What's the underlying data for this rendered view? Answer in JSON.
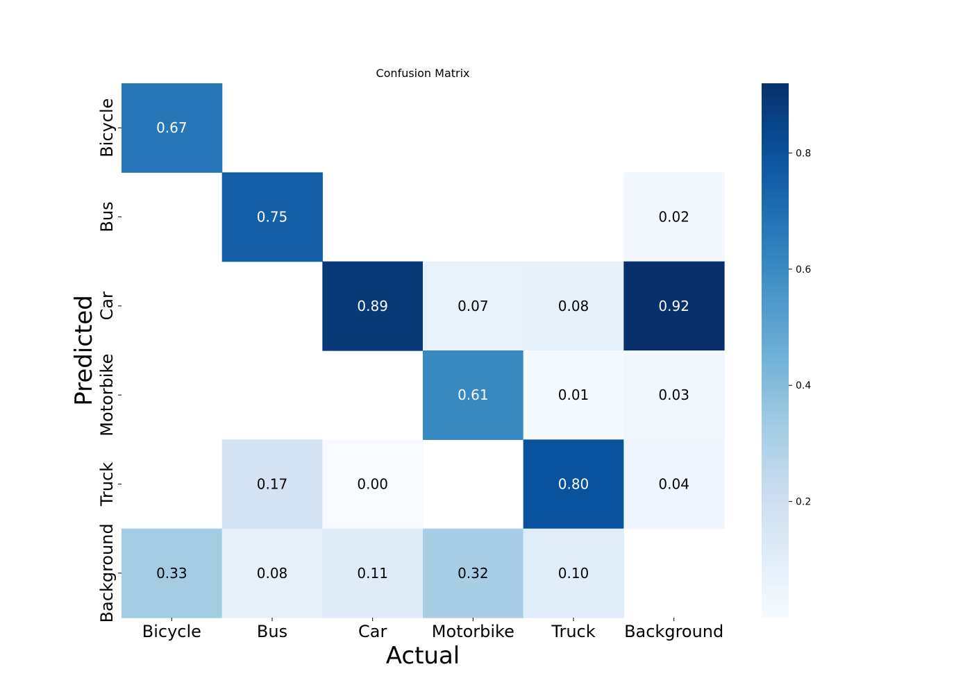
{
  "chart_data": {
    "type": "heatmap",
    "title": "Confusion Matrix",
    "xlabel": "Actual",
    "ylabel": "Predicted",
    "x_categories": [
      "Bicycle",
      "Bus",
      "Car",
      "Motorbike",
      "Truck",
      "Background"
    ],
    "y_categories": [
      "Bicycle",
      "Bus",
      "Car",
      "Motorbike",
      "Truck",
      "Background"
    ],
    "values": [
      [
        0.67,
        null,
        null,
        null,
        null,
        null
      ],
      [
        null,
        0.75,
        null,
        null,
        null,
        0.02
      ],
      [
        null,
        null,
        0.89,
        0.07,
        0.08,
        0.92
      ],
      [
        null,
        null,
        null,
        0.61,
        0.01,
        0.03
      ],
      [
        null,
        0.17,
        0.0,
        null,
        0.8,
        0.04
      ],
      [
        0.33,
        0.08,
        0.11,
        0.32,
        0.1,
        null
      ]
    ],
    "labels": [
      [
        "0.67",
        "",
        "",
        "",
        "",
        ""
      ],
      [
        "",
        "0.75",
        "",
        "",
        "",
        "0.02"
      ],
      [
        "",
        "",
        "0.89",
        "0.07",
        "0.08",
        "0.92"
      ],
      [
        "",
        "",
        "",
        "0.61",
        "0.01",
        "0.03"
      ],
      [
        "",
        "0.17",
        "0.00",
        "",
        "0.80",
        "0.04"
      ],
      [
        "0.33",
        "0.08",
        "0.11",
        "0.32",
        "0.10",
        ""
      ]
    ],
    "colormap": "Blues",
    "colorbar": {
      "range": [
        0.0,
        0.92
      ],
      "ticks": [
        0.2,
        0.4,
        0.6,
        0.8
      ],
      "tick_labels": [
        "0.2",
        "0.4",
        "0.6",
        "0.8"
      ]
    }
  }
}
